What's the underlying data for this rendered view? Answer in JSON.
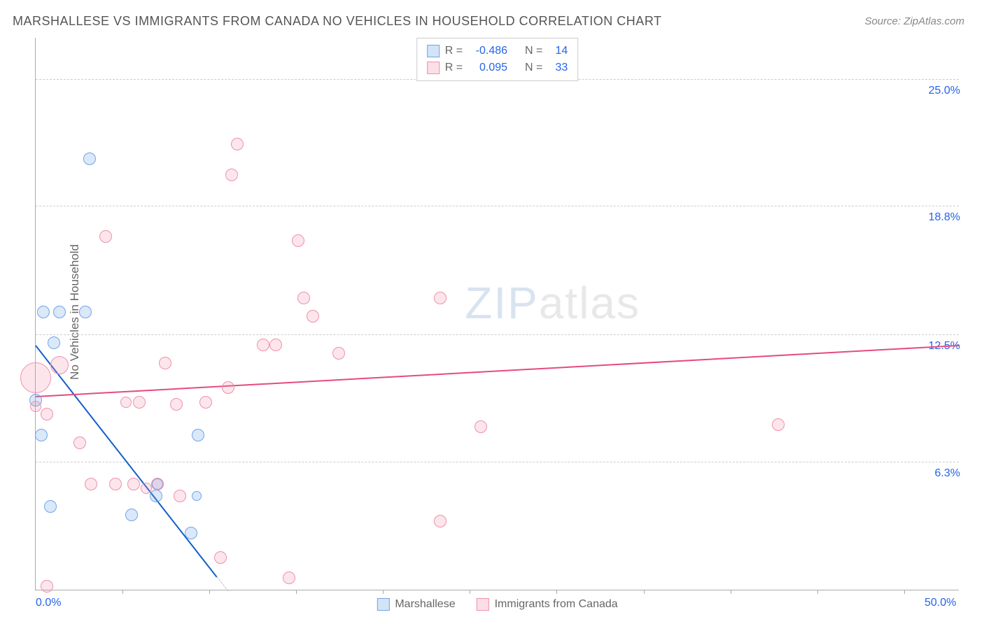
{
  "title": "MARSHALLESE VS IMMIGRANTS FROM CANADA NO VEHICLES IN HOUSEHOLD CORRELATION CHART",
  "source": "Source: ZipAtlas.com",
  "ylabel": "No Vehicles in Household",
  "watermark_a": "ZIP",
  "watermark_b": "atlas",
  "chart": {
    "type": "scatter",
    "xlim": [
      0,
      50
    ],
    "ylim": [
      0,
      27
    ],
    "background_color": "#ffffff",
    "grid_color": "#cccccc",
    "axis_color": "#aaaaaa",
    "tick_label_color": "#2563eb",
    "yticks": [
      {
        "v": 6.3,
        "label": "6.3%"
      },
      {
        "v": 12.5,
        "label": "12.5%"
      },
      {
        "v": 18.8,
        "label": "18.8%"
      },
      {
        "v": 25.0,
        "label": "25.0%"
      }
    ],
    "xticks_minor": [
      4.7,
      9.4,
      14.1,
      18.8,
      23.5,
      28.2,
      32.9,
      37.6,
      42.3,
      47.0
    ],
    "xtick_labels": [
      {
        "v": 0,
        "label": "0.0%"
      },
      {
        "v": 50,
        "label": "50.0%"
      }
    ],
    "series": [
      {
        "name": "Marshallese",
        "fill_color": "rgba(110,165,230,0.25)",
        "stroke_color": "#6ea5e6",
        "regression": {
          "x1": 0,
          "y1": 12.0,
          "x2": 10.4,
          "y2": 0,
          "solid_end_x": 9.8,
          "color": "#1160c9",
          "width": 2
        },
        "points": [
          {
            "x": 0.4,
            "y": 13.6,
            "r": 9
          },
          {
            "x": 1.3,
            "y": 13.6,
            "r": 9
          },
          {
            "x": 2.7,
            "y": 13.6,
            "r": 9
          },
          {
            "x": 1.0,
            "y": 12.1,
            "r": 9
          },
          {
            "x": 0.0,
            "y": 9.3,
            "r": 9
          },
          {
            "x": 0.3,
            "y": 7.6,
            "r": 9
          },
          {
            "x": 2.9,
            "y": 21.1,
            "r": 9
          },
          {
            "x": 0.8,
            "y": 4.1,
            "r": 9
          },
          {
            "x": 5.2,
            "y": 3.7,
            "r": 9
          },
          {
            "x": 6.5,
            "y": 4.6,
            "r": 9
          },
          {
            "x": 6.6,
            "y": 5.2,
            "r": 8
          },
          {
            "x": 8.8,
            "y": 7.6,
            "r": 9
          },
          {
            "x": 8.4,
            "y": 2.8,
            "r": 9
          },
          {
            "x": 8.7,
            "y": 4.6,
            "r": 7
          }
        ]
      },
      {
        "name": "Immigrants from Canada",
        "fill_color": "rgba(240,140,170,0.22)",
        "stroke_color": "#ef8fab",
        "regression": {
          "x1": 0,
          "y1": 9.5,
          "x2": 50,
          "y2": 12.0,
          "solid_end_x": 50,
          "color": "#e64b7b",
          "width": 2
        },
        "points": [
          {
            "x": 0.0,
            "y": 10.4,
            "r": 22
          },
          {
            "x": 0.6,
            "y": 8.6,
            "r": 9
          },
          {
            "x": 0.0,
            "y": 9.0,
            "r": 8
          },
          {
            "x": 1.3,
            "y": 11.0,
            "r": 13
          },
          {
            "x": 2.4,
            "y": 7.2,
            "r": 9
          },
          {
            "x": 3.0,
            "y": 5.2,
            "r": 9
          },
          {
            "x": 3.8,
            "y": 17.3,
            "r": 9
          },
          {
            "x": 4.3,
            "y": 5.2,
            "r": 9
          },
          {
            "x": 4.9,
            "y": 9.2,
            "r": 8
          },
          {
            "x": 5.3,
            "y": 5.2,
            "r": 9
          },
          {
            "x": 5.6,
            "y": 9.2,
            "r": 9
          },
          {
            "x": 6.0,
            "y": 5.0,
            "r": 8
          },
          {
            "x": 6.6,
            "y": 5.2,
            "r": 9
          },
          {
            "x": 7.0,
            "y": 11.1,
            "r": 9
          },
          {
            "x": 7.6,
            "y": 9.1,
            "r": 9
          },
          {
            "x": 7.8,
            "y": 4.6,
            "r": 9
          },
          {
            "x": 9.2,
            "y": 9.2,
            "r": 9
          },
          {
            "x": 10.0,
            "y": 1.6,
            "r": 9
          },
          {
            "x": 10.9,
            "y": 21.8,
            "r": 9
          },
          {
            "x": 10.6,
            "y": 20.3,
            "r": 9
          },
          {
            "x": 10.4,
            "y": 9.9,
            "r": 9
          },
          {
            "x": 12.3,
            "y": 12.0,
            "r": 9
          },
          {
            "x": 13.0,
            "y": 12.0,
            "r": 9
          },
          {
            "x": 13.7,
            "y": 0.6,
            "r": 9
          },
          {
            "x": 14.2,
            "y": 17.1,
            "r": 9
          },
          {
            "x": 14.5,
            "y": 14.3,
            "r": 9
          },
          {
            "x": 15.0,
            "y": 13.4,
            "r": 9
          },
          {
            "x": 16.4,
            "y": 11.6,
            "r": 9
          },
          {
            "x": 21.9,
            "y": 14.3,
            "r": 9
          },
          {
            "x": 21.9,
            "y": 3.4,
            "r": 9
          },
          {
            "x": 24.1,
            "y": 8.0,
            "r": 9
          },
          {
            "x": 40.2,
            "y": 8.1,
            "r": 9
          },
          {
            "x": 0.6,
            "y": 0.2,
            "r": 9
          }
        ]
      }
    ]
  },
  "legend_top": [
    {
      "swatch_fill": "rgba(110,165,230,0.30)",
      "swatch_stroke": "#6ea5e6",
      "r_label": "R =",
      "r_value": "-0.486",
      "n_label": "N =",
      "n_value": "14"
    },
    {
      "swatch_fill": "rgba(240,140,170,0.28)",
      "swatch_stroke": "#ef8fab",
      "r_label": "R =",
      "r_value": "0.095",
      "n_label": "N =",
      "n_value": "33"
    }
  ],
  "legend_bottom": [
    {
      "swatch_fill": "rgba(110,165,230,0.30)",
      "swatch_stroke": "#6ea5e6",
      "label": "Marshallese"
    },
    {
      "swatch_fill": "rgba(240,140,170,0.28)",
      "swatch_stroke": "#ef8fab",
      "label": "Immigrants from Canada"
    }
  ]
}
